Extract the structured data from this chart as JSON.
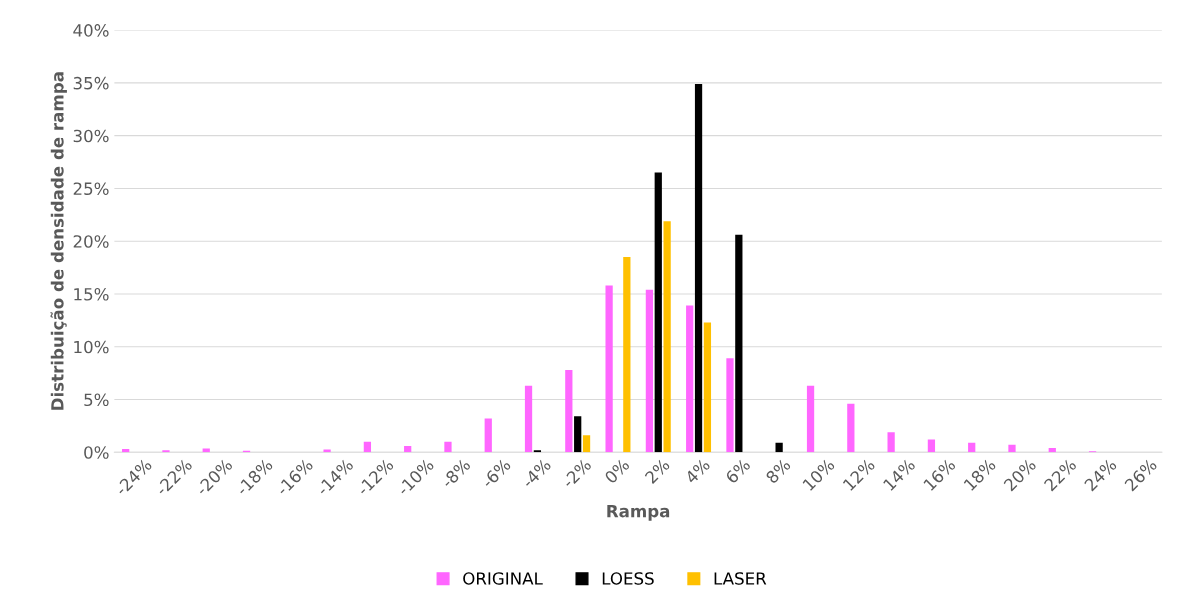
{
  "chart_data": {
    "type": "bar",
    "xlabel": "Rampa",
    "ylabel": "Distribuição de densidade de rampa",
    "categories": [
      "-24%",
      "-22%",
      "-20%",
      "-18%",
      "-16%",
      "-14%",
      "-12%",
      "-10%",
      "-8%",
      "-6%",
      "-4%",
      "-2%",
      "0%",
      "2%",
      "4%",
      "6%",
      "8%",
      "10%",
      "12%",
      "14%",
      "16%",
      "18%",
      "20%",
      "22%",
      "24%",
      "26%"
    ],
    "series": [
      {
        "name": "ORIGINAL",
        "color": "#ff66ff",
        "values": [
          0.3,
          0.2,
          0.35,
          0.15,
          0,
          0.25,
          1.0,
          0.6,
          1.0,
          3.2,
          6.3,
          7.8,
          15.8,
          15.4,
          13.9,
          8.9,
          0,
          6.3,
          4.6,
          1.9,
          1.2,
          0.9,
          0.7,
          0.4,
          0.1,
          0
        ]
      },
      {
        "name": "LOESS",
        "color": "#000000",
        "values": [
          0,
          0,
          0,
          0,
          0,
          0,
          0,
          0,
          0,
          0,
          0.2,
          3.4,
          0,
          26.5,
          34.9,
          20.6,
          0.9,
          0,
          0,
          0,
          0,
          0,
          0,
          0,
          0,
          0
        ]
      },
      {
        "name": "LASER",
        "color": "#ffc000",
        "values": [
          0,
          0,
          0,
          0,
          0,
          0,
          0,
          0,
          0,
          0,
          0,
          1.6,
          18.5,
          21.9,
          12.3,
          0,
          0,
          0,
          0,
          0,
          0,
          0,
          0,
          0,
          0,
          0
        ]
      }
    ],
    "ylim": [
      0,
      40
    ],
    "yticks": [
      {
        "value": 0,
        "label": "0%"
      },
      {
        "value": 5,
        "label": "5%"
      },
      {
        "value": 10,
        "label": "10%"
      },
      {
        "value": 15,
        "label": "15%"
      },
      {
        "value": 20,
        "label": "20%"
      },
      {
        "value": 25,
        "label": "25%"
      },
      {
        "value": 30,
        "label": "30%"
      },
      {
        "value": 35,
        "label": "35%"
      },
      {
        "value": 40,
        "label": "40%"
      }
    ],
    "grid": "y",
    "legend": "bottom"
  }
}
